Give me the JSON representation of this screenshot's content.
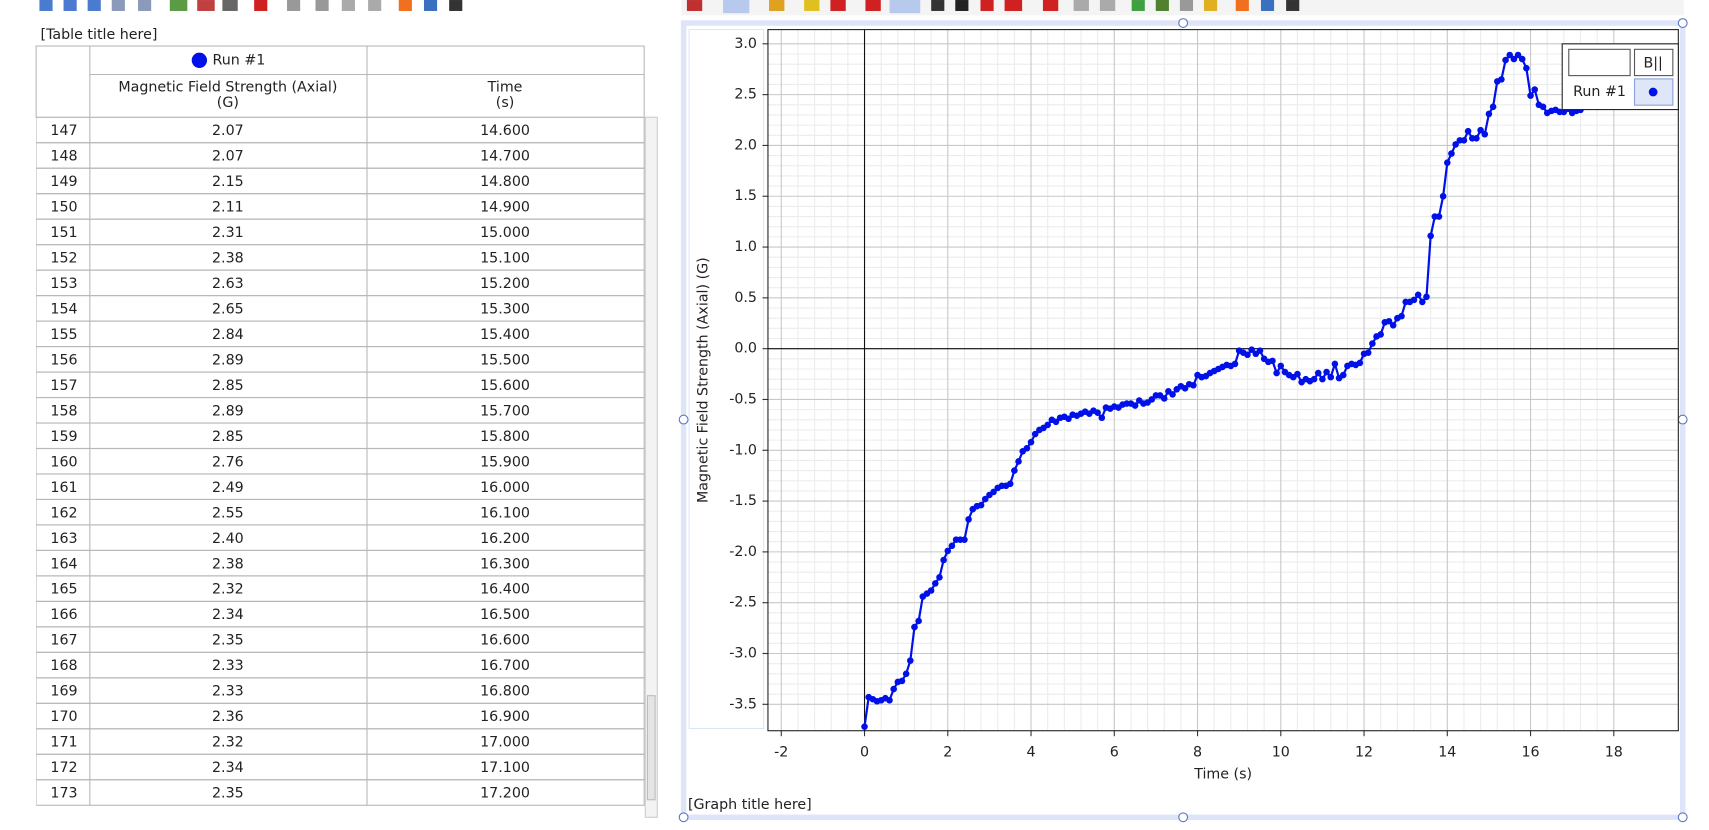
{
  "table": {
    "title": "[Table title here]",
    "run": "Run #1",
    "columns": [
      [
        "Magnetic Field Strength (Axial)",
        "(G)"
      ],
      [
        "Time",
        "(s)"
      ]
    ],
    "rows": [
      [
        "147",
        "2.07",
        "14.600"
      ],
      [
        "148",
        "2.07",
        "14.700"
      ],
      [
        "149",
        "2.15",
        "14.800"
      ],
      [
        "150",
        "2.11",
        "14.900"
      ],
      [
        "151",
        "2.31",
        "15.000"
      ],
      [
        "152",
        "2.38",
        "15.100"
      ],
      [
        "153",
        "2.63",
        "15.200"
      ],
      [
        "154",
        "2.65",
        "15.300"
      ],
      [
        "155",
        "2.84",
        "15.400"
      ],
      [
        "156",
        "2.89",
        "15.500"
      ],
      [
        "157",
        "2.85",
        "15.600"
      ],
      [
        "158",
        "2.89",
        "15.700"
      ],
      [
        "159",
        "2.85",
        "15.800"
      ],
      [
        "160",
        "2.76",
        "15.900"
      ],
      [
        "161",
        "2.49",
        "16.000"
      ],
      [
        "162",
        "2.55",
        "16.100"
      ],
      [
        "163",
        "2.40",
        "16.200"
      ],
      [
        "164",
        "2.38",
        "16.300"
      ],
      [
        "165",
        "2.32",
        "16.400"
      ],
      [
        "166",
        "2.34",
        "16.500"
      ],
      [
        "167",
        "2.35",
        "16.600"
      ],
      [
        "168",
        "2.33",
        "16.700"
      ],
      [
        "169",
        "2.33",
        "16.800"
      ],
      [
        "170",
        "2.36",
        "16.900"
      ],
      [
        "171",
        "2.32",
        "17.000"
      ],
      [
        "172",
        "2.34",
        "17.100"
      ],
      [
        "173",
        "2.35",
        "17.200"
      ]
    ]
  },
  "chart_data": {
    "type": "line",
    "title": "[Graph title here]",
    "x_label": "Time (s)",
    "y_label": "Magnetic Field Strength (Axial) (G)",
    "legend_header": "B||",
    "legend": "top-right",
    "grid": true,
    "xlim": [
      -2.32,
      19.55
    ],
    "ylim": [
      -3.76,
      3.14
    ],
    "xticks": [
      -2,
      0,
      2,
      4,
      6,
      8,
      10,
      12,
      14,
      16,
      18
    ],
    "yticks": [
      {
        "value": 3,
        "label": "3.0"
      },
      2.5,
      {
        "value": 2,
        "label": "2.0"
      },
      1.5,
      {
        "value": 1,
        "label": "1.0"
      },
      0.5,
      {
        "value": 0,
        "label": "0.0"
      },
      -0.5,
      {
        "value": -1,
        "label": "-1.0"
      },
      -1.5,
      {
        "value": -2,
        "label": "-2.0"
      },
      -2.5,
      {
        "value": -3,
        "label": "-3.0"
      },
      -3.5
    ],
    "x": [
      0,
      0.1,
      0.2,
      0.3,
      0.4,
      0.5,
      0.6,
      0.7,
      0.8,
      0.9,
      1,
      1.1,
      1.2,
      1.3,
      1.4,
      1.5,
      1.6,
      1.7,
      1.8,
      1.9,
      2,
      2.1,
      2.2,
      2.3,
      2.4,
      2.5,
      2.6,
      2.7,
      2.8,
      2.9,
      3,
      3.1,
      3.2,
      3.3,
      3.4,
      3.5,
      3.6,
      3.7,
      3.8,
      3.9,
      4,
      4.1,
      4.2,
      4.3,
      4.4,
      4.5,
      4.6,
      4.7,
      4.8,
      4.9,
      5,
      5.1,
      5.2,
      5.3,
      5.4,
      5.5,
      5.6,
      5.7,
      5.8,
      5.9,
      6,
      6.1,
      6.2,
      6.3,
      6.4,
      6.5,
      6.6,
      6.7,
      6.8,
      6.9,
      7,
      7.1,
      7.2,
      7.3,
      7.4,
      7.5,
      7.6,
      7.7,
      7.8,
      7.9,
      8,
      8.1,
      8.2,
      8.3,
      8.4,
      8.5,
      8.6,
      8.7,
      8.8,
      8.9,
      9,
      9.1,
      9.2,
      9.3,
      9.4,
      9.5,
      9.6,
      9.7,
      9.8,
      9.9,
      10,
      10.1,
      10.2,
      10.3,
      10.4,
      10.5,
      10.6,
      10.7,
      10.8,
      10.9,
      11,
      11.1,
      11.2,
      11.3,
      11.4,
      11.5,
      11.6,
      11.7,
      11.8,
      11.9,
      12,
      12.1,
      12.2,
      12.3,
      12.4,
      12.5,
      12.6,
      12.7,
      12.8,
      12.9,
      13,
      13.1,
      13.2,
      13.3,
      13.4,
      13.5,
      13.6,
      13.7,
      13.8,
      13.9,
      14,
      14.1,
      14.2,
      14.3,
      14.4,
      14.5,
      14.6,
      14.7,
      14.8,
      14.9,
      15,
      15.1,
      15.2,
      15.3,
      15.4,
      15.5,
      15.6,
      15.7,
      15.8,
      15.9,
      16,
      16.1,
      16.2,
      16.3,
      16.4,
      16.5,
      16.6,
      16.7,
      16.8,
      16.9,
      17,
      17.1,
      17.2
    ],
    "series": [
      {
        "name": "Run #1",
        "color": "#0010e8",
        "values": [
          -3.72,
          -3.43,
          -3.45,
          -3.47,
          -3.46,
          -3.44,
          -3.46,
          -3.35,
          -3.28,
          -3.27,
          -3.2,
          -3.07,
          -2.74,
          -2.68,
          -2.44,
          -2.41,
          -2.38,
          -2.31,
          -2.25,
          -2.08,
          -1.99,
          -1.94,
          -1.88,
          -1.88,
          -1.88,
          -1.68,
          -1.58,
          -1.55,
          -1.54,
          -1.48,
          -1.44,
          -1.41,
          -1.37,
          -1.35,
          -1.35,
          -1.33,
          -1.2,
          -1.11,
          -1.01,
          -0.98,
          -0.92,
          -0.84,
          -0.8,
          -0.78,
          -0.75,
          -0.7,
          -0.72,
          -0.68,
          -0.67,
          -0.69,
          -0.65,
          -0.66,
          -0.64,
          -0.62,
          -0.64,
          -0.61,
          -0.63,
          -0.68,
          -0.58,
          -0.59,
          -0.57,
          -0.58,
          -0.55,
          -0.54,
          -0.54,
          -0.56,
          -0.51,
          -0.54,
          -0.53,
          -0.5,
          -0.46,
          -0.46,
          -0.49,
          -0.42,
          -0.45,
          -0.4,
          -0.37,
          -0.39,
          -0.35,
          -0.36,
          -0.26,
          -0.28,
          -0.27,
          -0.24,
          -0.22,
          -0.2,
          -0.18,
          -0.16,
          -0.17,
          -0.15,
          -0.02,
          -0.04,
          -0.06,
          -0.01,
          -0.05,
          -0.02,
          -0.1,
          -0.13,
          -0.12,
          -0.24,
          -0.17,
          -0.23,
          -0.26,
          -0.28,
          -0.25,
          -0.33,
          -0.3,
          -0.32,
          -0.3,
          -0.24,
          -0.3,
          -0.23,
          -0.28,
          -0.15,
          -0.29,
          -0.26,
          -0.17,
          -0.15,
          -0.16,
          -0.14,
          -0.05,
          -0.04,
          0.05,
          0.12,
          0.14,
          0.26,
          0.27,
          0.23,
          0.3,
          0.32,
          0.46,
          0.46,
          0.48,
          0.53,
          0.46,
          0.51,
          1.11,
          1.3,
          1.3,
          1.5,
          1.83,
          1.92,
          2.01,
          2.05,
          2.05,
          2.14,
          2.07,
          2.07,
          2.15,
          2.11,
          2.31,
          2.38,
          2.63,
          2.65,
          2.84,
          2.89,
          2.85,
          2.89,
          2.85,
          2.76,
          2.49,
          2.55,
          2.4,
          2.38,
          2.32,
          2.34,
          2.35,
          2.33,
          2.33,
          2.36,
          2.32,
          2.34,
          2.35
        ]
      }
    ]
  }
}
